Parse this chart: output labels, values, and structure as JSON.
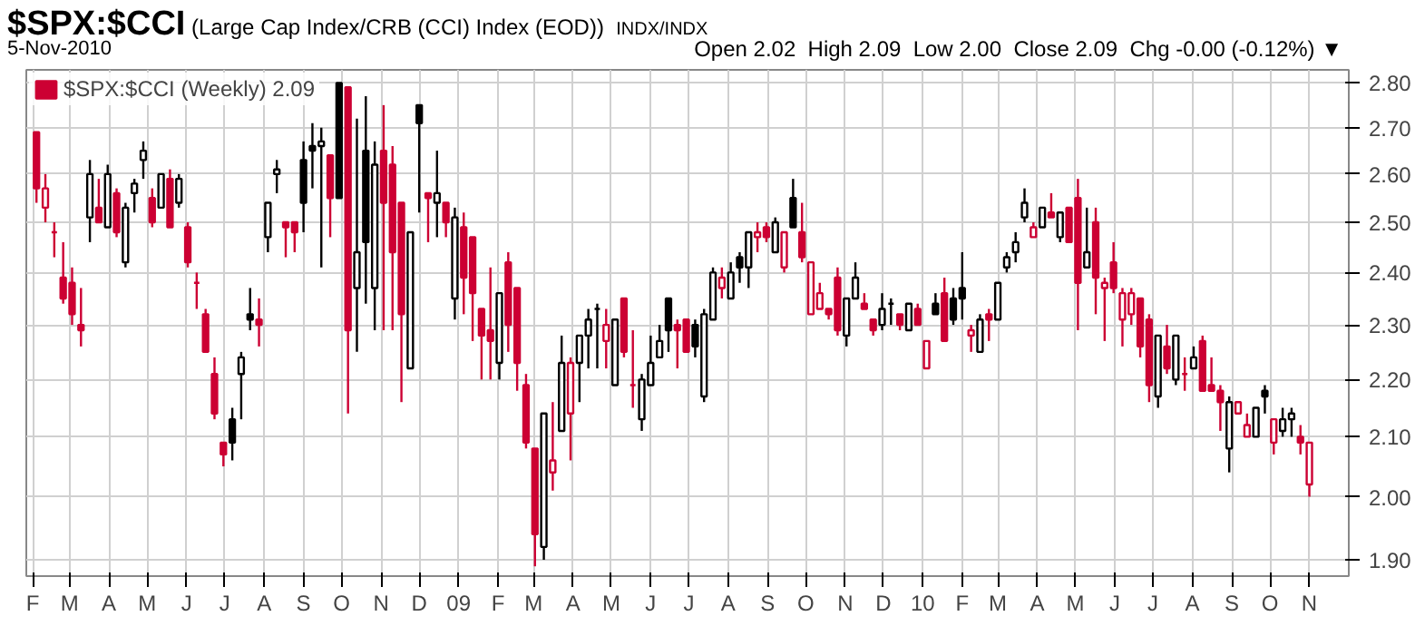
{
  "chart_data": {
    "type": "candlestick",
    "title": "$SPX:$CCI",
    "subtitle": "(Large Cap Index/CRB (CCI) Index (EOD))",
    "annotations": [
      "INDX/INDX",
      "5-Nov-2010",
      "Open 2.02  High 2.09  Low 2.00  Close 2.09  Chg -0.00 (-0.12%) ▼"
    ],
    "x": [
      "2008-02-04",
      "2008-02-11",
      "2008-02-18",
      "2008-02-25",
      "2008-03-03",
      "2008-03-10",
      "2008-03-17",
      "2008-03-24",
      "2008-03-31",
      "2008-04-07",
      "2008-04-14",
      "2008-04-21",
      "2008-04-28",
      "2008-05-05",
      "2008-05-12",
      "2008-05-19",
      "2008-05-26",
      "2008-06-02",
      "2008-06-09",
      "2008-06-16",
      "2008-06-23",
      "2008-06-30",
      "2008-07-07",
      "2008-07-14",
      "2008-07-21",
      "2008-07-28",
      "2008-08-04",
      "2008-08-11",
      "2008-08-18",
      "2008-08-25",
      "2008-09-01",
      "2008-09-08",
      "2008-09-15",
      "2008-09-22",
      "2008-09-29",
      "2008-10-06",
      "2008-10-13",
      "2008-10-20",
      "2008-10-27",
      "2008-11-03",
      "2008-11-10",
      "2008-11-17",
      "2008-11-24",
      "2008-12-01",
      "2008-12-08",
      "2008-12-15",
      "2008-12-22",
      "2008-12-29",
      "2009-01-05",
      "2009-01-12",
      "2009-01-19",
      "2009-01-26",
      "2009-02-02",
      "2009-02-09",
      "2009-02-16",
      "2009-02-23",
      "2009-03-02",
      "2009-03-09",
      "2009-03-16",
      "2009-03-23",
      "2009-03-30",
      "2009-04-06",
      "2009-04-13",
      "2009-04-20",
      "2009-04-27",
      "2009-05-04",
      "2009-05-11",
      "2009-05-18",
      "2009-05-25",
      "2009-06-01",
      "2009-06-08",
      "2009-06-15",
      "2009-06-22",
      "2009-06-29",
      "2009-07-06",
      "2009-07-13",
      "2009-07-20",
      "2009-07-27",
      "2009-08-03",
      "2009-08-10",
      "2009-08-17",
      "2009-08-24",
      "2009-08-31",
      "2009-09-07",
      "2009-09-14",
      "2009-09-21",
      "2009-09-28",
      "2009-10-05",
      "2009-10-12",
      "2009-10-19",
      "2009-10-26",
      "2009-11-02",
      "2009-11-09",
      "2009-11-16",
      "2009-11-23",
      "2009-11-30",
      "2009-12-07",
      "2009-12-14",
      "2009-12-21",
      "2009-12-28",
      "2010-01-04",
      "2010-01-11",
      "2010-01-18",
      "2010-01-25",
      "2010-02-01",
      "2010-02-08",
      "2010-02-15",
      "2010-02-22",
      "2010-03-01",
      "2010-03-08",
      "2010-03-15",
      "2010-03-22",
      "2010-03-29",
      "2010-04-05",
      "2010-04-12",
      "2010-04-19",
      "2010-04-26",
      "2010-05-03",
      "2010-05-10",
      "2010-05-17",
      "2010-05-24",
      "2010-05-31",
      "2010-06-07",
      "2010-06-14",
      "2010-06-21",
      "2010-06-28",
      "2010-07-05",
      "2010-07-12",
      "2010-07-19",
      "2010-07-26",
      "2010-08-02",
      "2010-08-09",
      "2010-08-16",
      "2010-08-23",
      "2010-08-30",
      "2010-09-06",
      "2010-09-13",
      "2010-09-20",
      "2010-09-27",
      "2010-10-04",
      "2010-10-11",
      "2010-10-18",
      "2010-10-25",
      "2010-11-01"
    ],
    "series": [
      {
        "name": "$SPX:$CCI (Weekly) 2.09",
        "ohlc": [
          [
            2.69,
            2.69,
            2.54,
            2.57
          ],
          [
            2.53,
            2.6,
            2.5,
            2.57
          ],
          [
            2.48,
            2.5,
            2.43,
            2.48
          ],
          [
            2.39,
            2.46,
            2.34,
            2.35
          ],
          [
            2.38,
            2.41,
            2.3,
            2.32
          ],
          [
            2.3,
            2.37,
            2.26,
            2.29
          ],
          [
            2.51,
            2.63,
            2.46,
            2.6
          ],
          [
            2.53,
            2.59,
            2.5,
            2.5
          ],
          [
            2.49,
            2.62,
            2.49,
            2.6
          ],
          [
            2.56,
            2.57,
            2.47,
            2.48
          ],
          [
            2.42,
            2.54,
            2.41,
            2.53
          ],
          [
            2.56,
            2.59,
            2.52,
            2.58
          ],
          [
            2.63,
            2.67,
            2.59,
            2.65
          ],
          [
            2.55,
            2.57,
            2.49,
            2.5
          ],
          [
            2.53,
            2.6,
            2.53,
            2.6
          ],
          [
            2.59,
            2.61,
            2.49,
            2.49
          ],
          [
            2.54,
            2.6,
            2.53,
            2.59
          ],
          [
            2.49,
            2.5,
            2.41,
            2.42
          ],
          [
            2.38,
            2.4,
            2.33,
            2.38
          ],
          [
            2.32,
            2.33,
            2.25,
            2.25
          ],
          [
            2.21,
            2.24,
            2.13,
            2.14
          ],
          [
            2.09,
            2.09,
            2.05,
            2.07
          ],
          [
            2.13,
            2.15,
            2.06,
            2.09
          ],
          [
            2.21,
            2.25,
            2.13,
            2.24
          ],
          [
            2.32,
            2.37,
            2.29,
            2.31
          ],
          [
            2.31,
            2.35,
            2.26,
            2.3
          ],
          [
            2.47,
            2.54,
            2.44,
            2.54
          ],
          [
            2.6,
            2.63,
            2.56,
            2.61
          ],
          [
            2.5,
            2.5,
            2.43,
            2.49
          ],
          [
            2.5,
            2.5,
            2.44,
            2.48
          ],
          [
            2.63,
            2.67,
            2.48,
            2.54
          ],
          [
            2.66,
            2.71,
            2.57,
            2.65
          ],
          [
            2.66,
            2.7,
            2.41,
            2.67
          ],
          [
            2.64,
            2.64,
            2.47,
            2.55
          ],
          [
            2.8,
            2.8,
            2.55,
            2.55
          ],
          [
            2.79,
            2.79,
            2.14,
            2.29
          ],
          [
            2.37,
            2.72,
            2.25,
            2.44
          ],
          [
            2.65,
            2.77,
            2.34,
            2.46
          ],
          [
            2.37,
            2.67,
            2.29,
            2.62
          ],
          [
            2.65,
            2.75,
            2.29,
            2.54
          ],
          [
            2.62,
            2.66,
            2.29,
            2.44
          ],
          [
            2.54,
            2.54,
            2.16,
            2.32
          ],
          [
            2.22,
            2.48,
            2.22,
            2.48
          ],
          [
            2.75,
            2.75,
            2.52,
            2.71
          ],
          [
            2.56,
            2.56,
            2.46,
            2.55
          ],
          [
            2.54,
            2.65,
            2.47,
            2.56
          ],
          [
            2.54,
            2.54,
            2.47,
            2.5
          ],
          [
            2.35,
            2.53,
            2.31,
            2.51
          ],
          [
            2.49,
            2.52,
            2.32,
            2.39
          ],
          [
            2.47,
            2.47,
            2.27,
            2.36
          ],
          [
            2.33,
            2.33,
            2.2,
            2.28
          ],
          [
            2.29,
            2.41,
            2.2,
            2.27
          ],
          [
            2.23,
            2.36,
            2.2,
            2.36
          ],
          [
            2.42,
            2.44,
            2.25,
            2.3
          ],
          [
            2.37,
            2.37,
            2.18,
            2.23
          ],
          [
            2.19,
            2.21,
            2.08,
            2.09
          ],
          [
            2.08,
            2.08,
            1.89,
            1.94
          ],
          [
            1.92,
            2.14,
            1.9,
            2.14
          ],
          [
            2.04,
            2.16,
            2.01,
            2.06
          ],
          [
            2.11,
            2.28,
            2.11,
            2.23
          ],
          [
            2.14,
            2.24,
            2.06,
            2.23
          ],
          [
            2.23,
            2.28,
            2.16,
            2.28
          ],
          [
            2.28,
            2.33,
            2.22,
            2.31
          ],
          [
            2.33,
            2.34,
            2.22,
            2.33
          ],
          [
            2.27,
            2.33,
            2.22,
            2.3
          ],
          [
            2.19,
            2.31,
            2.19,
            2.31
          ],
          [
            2.35,
            2.35,
            2.24,
            2.25
          ],
          [
            2.19,
            2.29,
            2.15,
            2.19
          ],
          [
            2.13,
            2.21,
            2.11,
            2.2
          ],
          [
            2.19,
            2.28,
            2.19,
            2.23
          ],
          [
            2.24,
            2.3,
            2.24,
            2.27
          ],
          [
            2.35,
            2.35,
            2.25,
            2.29
          ],
          [
            2.3,
            2.31,
            2.22,
            2.29
          ],
          [
            2.31,
            2.31,
            2.25,
            2.25
          ],
          [
            2.3,
            2.31,
            2.24,
            2.26
          ],
          [
            2.17,
            2.33,
            2.16,
            2.32
          ],
          [
            2.31,
            2.41,
            2.31,
            2.4
          ],
          [
            2.37,
            2.41,
            2.35,
            2.39
          ],
          [
            2.35,
            2.42,
            2.35,
            2.4
          ],
          [
            2.43,
            2.44,
            2.38,
            2.41
          ],
          [
            2.41,
            2.48,
            2.37,
            2.48
          ],
          [
            2.47,
            2.5,
            2.44,
            2.48
          ],
          [
            2.49,
            2.5,
            2.46,
            2.47
          ],
          [
            2.44,
            2.51,
            2.44,
            2.5
          ],
          [
            2.41,
            2.48,
            2.4,
            2.48
          ],
          [
            2.55,
            2.59,
            2.49,
            2.49
          ],
          [
            2.48,
            2.54,
            2.42,
            2.43
          ],
          [
            2.32,
            2.42,
            2.32,
            2.42
          ],
          [
            2.33,
            2.38,
            2.33,
            2.36
          ],
          [
            2.33,
            2.33,
            2.31,
            2.32
          ],
          [
            2.39,
            2.41,
            2.28,
            2.29
          ],
          [
            2.28,
            2.35,
            2.26,
            2.35
          ],
          [
            2.35,
            2.42,
            2.35,
            2.39
          ],
          [
            2.34,
            2.36,
            2.33,
            2.33
          ],
          [
            2.31,
            2.31,
            2.28,
            2.29
          ],
          [
            2.3,
            2.36,
            2.29,
            2.33
          ],
          [
            2.34,
            2.35,
            2.3,
            2.34
          ],
          [
            2.32,
            2.32,
            2.29,
            2.3
          ],
          [
            2.29,
            2.34,
            2.29,
            2.34
          ],
          [
            2.33,
            2.34,
            2.3,
            2.3
          ],
          [
            2.22,
            2.27,
            2.22,
            2.27
          ],
          [
            2.34,
            2.36,
            2.32,
            2.32
          ],
          [
            2.36,
            2.39,
            2.27,
            2.27
          ],
          [
            2.35,
            2.37,
            2.3,
            2.31
          ],
          [
            2.37,
            2.44,
            2.31,
            2.35
          ],
          [
            2.28,
            2.3,
            2.25,
            2.29
          ],
          [
            2.25,
            2.32,
            2.25,
            2.31
          ],
          [
            2.32,
            2.33,
            2.27,
            2.31
          ],
          [
            2.31,
            2.38,
            2.31,
            2.38
          ],
          [
            2.41,
            2.44,
            2.4,
            2.43
          ],
          [
            2.44,
            2.48,
            2.42,
            2.46
          ],
          [
            2.51,
            2.57,
            2.5,
            2.54
          ],
          [
            2.47,
            2.5,
            2.47,
            2.49
          ],
          [
            2.49,
            2.53,
            2.49,
            2.53
          ],
          [
            2.52,
            2.56,
            2.51,
            2.51
          ],
          [
            2.47,
            2.52,
            2.46,
            2.52
          ],
          [
            2.53,
            2.53,
            2.46,
            2.46
          ],
          [
            2.55,
            2.59,
            2.29,
            2.38
          ],
          [
            2.41,
            2.53,
            2.41,
            2.44
          ],
          [
            2.5,
            2.53,
            2.32,
            2.39
          ],
          [
            2.37,
            2.39,
            2.27,
            2.38
          ],
          [
            2.42,
            2.46,
            2.36,
            2.37
          ],
          [
            2.31,
            2.37,
            2.26,
            2.36
          ],
          [
            2.32,
            2.37,
            2.3,
            2.36
          ],
          [
            2.35,
            2.35,
            2.24,
            2.26
          ],
          [
            2.31,
            2.32,
            2.16,
            2.19
          ],
          [
            2.17,
            2.28,
            2.15,
            2.28
          ],
          [
            2.26,
            2.3,
            2.21,
            2.22
          ],
          [
            2.2,
            2.28,
            2.19,
            2.28
          ],
          [
            2.21,
            2.24,
            2.18,
            2.21
          ],
          [
            2.22,
            2.26,
            2.22,
            2.24
          ],
          [
            2.27,
            2.28,
            2.18,
            2.18
          ],
          [
            2.19,
            2.24,
            2.18,
            2.18
          ],
          [
            2.18,
            2.19,
            2.11,
            2.16
          ],
          [
            2.08,
            2.17,
            2.04,
            2.16
          ],
          [
            2.14,
            2.16,
            2.14,
            2.16
          ],
          [
            2.1,
            2.14,
            2.1,
            2.12
          ],
          [
            2.1,
            2.15,
            2.1,
            2.15
          ],
          [
            2.18,
            2.19,
            2.14,
            2.17
          ],
          [
            2.09,
            2.13,
            2.07,
            2.13
          ],
          [
            2.11,
            2.15,
            2.1,
            2.13
          ],
          [
            2.13,
            2.15,
            2.1,
            2.14
          ],
          [
            2.1,
            2.12,
            2.07,
            2.09
          ],
          [
            2.02,
            2.09,
            2.0,
            2.09
          ]
        ],
        "colors": [
          "#cc0033",
          "#cc0033",
          "#cc0033",
          "#cc0033",
          "#cc0033",
          "#cc0033",
          "#000000",
          "#cc0033",
          "#000000",
          "#cc0033",
          "#000000",
          "#000000",
          "#000000",
          "#cc0033",
          "#000000",
          "#cc0033",
          "#000000",
          "#cc0033",
          "#cc0033",
          "#cc0033",
          "#cc0033",
          "#cc0033",
          "#000000",
          "#000000",
          "#000000",
          "#cc0033",
          "#000000",
          "#000000",
          "#cc0033",
          "#cc0033",
          "#000000",
          "#000000",
          "#000000",
          "#cc0033",
          "#000000",
          "#cc0033",
          "#000000",
          "#000000",
          "#000000",
          "#cc0033",
          "#cc0033",
          "#cc0033",
          "#000000",
          "#000000",
          "#cc0033",
          "#000000",
          "#cc0033",
          "#000000",
          "#cc0033",
          "#cc0033",
          "#cc0033",
          "#cc0033",
          "#000000",
          "#cc0033",
          "#cc0033",
          "#cc0033",
          "#cc0033",
          "#000000",
          "#cc0033",
          "#000000",
          "#cc0033",
          "#000000",
          "#000000",
          "#000000",
          "#cc0033",
          "#000000",
          "#cc0033",
          "#cc0033",
          "#000000",
          "#000000",
          "#000000",
          "#000000",
          "#cc0033",
          "#cc0033",
          "#000000",
          "#000000",
          "#000000",
          "#cc0033",
          "#000000",
          "#000000",
          "#000000",
          "#cc0033",
          "#cc0033",
          "#000000",
          "#cc0033",
          "#000000",
          "#cc0033",
          "#cc0033",
          "#cc0033",
          "#cc0033",
          "#cc0033",
          "#000000",
          "#000000",
          "#cc0033",
          "#cc0033",
          "#000000",
          "#000000",
          "#cc0033",
          "#000000",
          "#cc0033",
          "#cc0033",
          "#000000",
          "#cc0033",
          "#000000",
          "#000000",
          "#cc0033",
          "#000000",
          "#cc0033",
          "#000000",
          "#000000",
          "#000000",
          "#000000",
          "#cc0033",
          "#000000",
          "#cc0033",
          "#000000",
          "#cc0033",
          "#cc0033",
          "#000000",
          "#cc0033",
          "#cc0033",
          "#cc0033",
          "#cc0033",
          "#cc0033",
          "#cc0033",
          "#cc0033",
          "#000000",
          "#cc0033",
          "#000000",
          "#cc0033",
          "#000000",
          "#cc0033",
          "#cc0033",
          "#cc0033",
          "#000000",
          "#cc0033",
          "#cc0033",
          "#000000",
          "#000000",
          "#cc0033",
          "#000000",
          "#000000",
          "#cc0033",
          "#cc0033"
        ]
      }
    ],
    "xlim": [
      "2008-01-27",
      "2010-12-02"
    ],
    "xticks": [
      {
        "value": "2008-02-01",
        "label": "F"
      },
      {
        "value": "2008-03-01",
        "label": "M"
      },
      {
        "value": "2008-04-01",
        "label": "A"
      },
      {
        "value": "2008-05-01",
        "label": "M"
      },
      {
        "value": "2008-06-01",
        "label": "J"
      },
      {
        "value": "2008-07-01",
        "label": "J"
      },
      {
        "value": "2008-08-01",
        "label": "A"
      },
      {
        "value": "2008-09-01",
        "label": "S"
      },
      {
        "value": "2008-10-01",
        "label": "O"
      },
      {
        "value": "2008-11-01",
        "label": "N"
      },
      {
        "value": "2008-12-01",
        "label": "D"
      },
      {
        "value": "2009-01-01",
        "label": "09"
      },
      {
        "value": "2009-02-01",
        "label": "F"
      },
      {
        "value": "2009-03-01",
        "label": "M"
      },
      {
        "value": "2009-04-01",
        "label": "A"
      },
      {
        "value": "2009-05-01",
        "label": "M"
      },
      {
        "value": "2009-06-01",
        "label": "J"
      },
      {
        "value": "2009-07-01",
        "label": "J"
      },
      {
        "value": "2009-08-01",
        "label": "A"
      },
      {
        "value": "2009-09-01",
        "label": "S"
      },
      {
        "value": "2009-10-01",
        "label": "O"
      },
      {
        "value": "2009-11-01",
        "label": "N"
      },
      {
        "value": "2009-12-01",
        "label": "D"
      },
      {
        "value": "2010-01-01",
        "label": "10"
      },
      {
        "value": "2010-02-01",
        "label": "F"
      },
      {
        "value": "2010-03-01",
        "label": "M"
      },
      {
        "value": "2010-04-01",
        "label": "A"
      },
      {
        "value": "2010-05-01",
        "label": "M"
      },
      {
        "value": "2010-06-01",
        "label": "J"
      },
      {
        "value": "2010-07-01",
        "label": "J"
      },
      {
        "value": "2010-08-01",
        "label": "A"
      },
      {
        "value": "2010-09-01",
        "label": "S"
      },
      {
        "value": "2010-10-01",
        "label": "O"
      },
      {
        "value": "2010-11-01",
        "label": "N"
      }
    ],
    "ylim": [
      1.875,
      2.83
    ],
    "yticks": [
      {
        "value": 1.9,
        "label": "1.90"
      },
      {
        "value": 2.0,
        "label": "2.00"
      },
      {
        "value": 2.1,
        "label": "2.10"
      },
      {
        "value": 2.2,
        "label": "2.20"
      },
      {
        "value": 2.3,
        "label": "2.30"
      },
      {
        "value": 2.4,
        "label": "2.40"
      },
      {
        "value": 2.5,
        "label": "2.50"
      },
      {
        "value": 2.6,
        "label": "2.60"
      },
      {
        "value": 2.7,
        "label": "2.70"
      },
      {
        "value": 2.8,
        "label": "2.80"
      }
    ],
    "log": true,
    "grid": true,
    "legend": "top left"
  }
}
